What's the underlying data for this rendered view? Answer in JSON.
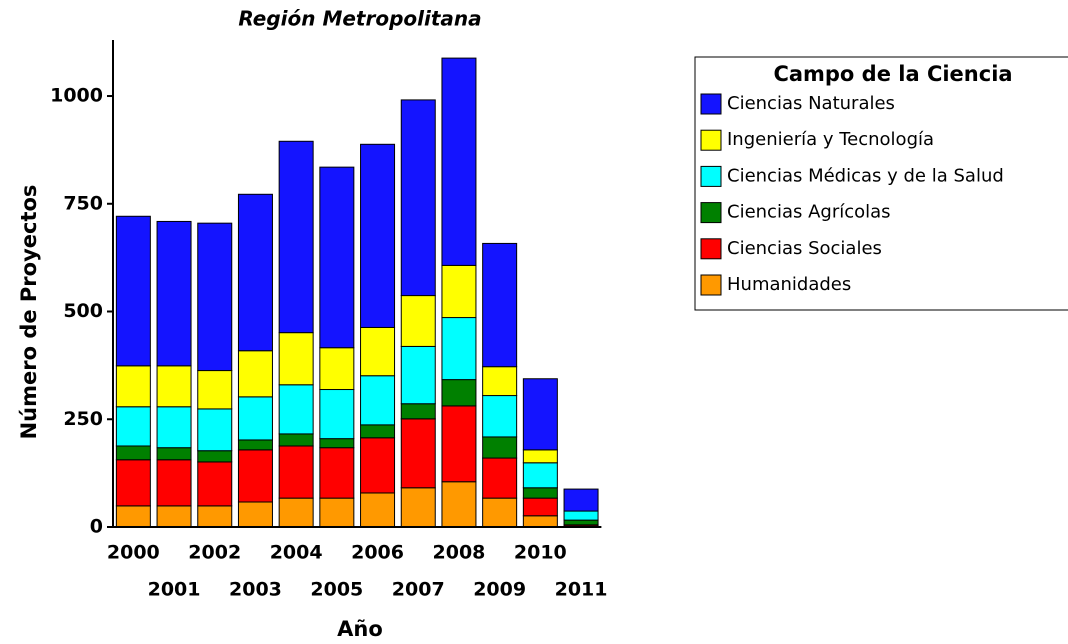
{
  "chart_data": {
    "type": "stacked_bar",
    "title": "Región Metropolitana",
    "x_label": "Año",
    "y_label": "Número de Proyectos",
    "legend_title": "Campo de la Ciencia",
    "categories": [
      "2000",
      "2001",
      "2002",
      "2003",
      "2004",
      "2005",
      "2006",
      "2007",
      "2008",
      "2009",
      "2010",
      "2011"
    ],
    "series": [
      {
        "name": "Humanidades",
        "color": "#ff9900",
        "values": [
          49,
          49,
          49,
          58,
          67,
          67,
          79,
          91,
          105,
          67,
          26,
          2
        ]
      },
      {
        "name": "Ciencias Sociales",
        "color": "#ff0000",
        "values": [
          107,
          107,
          102,
          121,
          121,
          117,
          128,
          160,
          176,
          93,
          41,
          3
        ]
      },
      {
        "name": "Ciencias Agrícolas",
        "color": "#008000",
        "values": [
          32,
          28,
          26,
          23,
          28,
          21,
          30,
          35,
          61,
          49,
          24,
          11
        ]
      },
      {
        "name": "Ciencias Médicas y de la Salud",
        "color": "#00ffff",
        "values": [
          91,
          95,
          97,
          100,
          114,
          114,
          114,
          133,
          144,
          96,
          58,
          21
        ]
      },
      {
        "name": "Ingeniería y Tecnología",
        "color": "#ffff00",
        "values": [
          95,
          95,
          89,
          107,
          121,
          97,
          112,
          118,
          121,
          67,
          30,
          0
        ]
      },
      {
        "name": "Ciencias Naturales",
        "color": "#1414ff",
        "values": [
          347,
          335,
          342,
          363,
          444,
          419,
          425,
          454,
          481,
          286,
          165,
          51
        ]
      }
    ],
    "ylim": [
      0,
      1130
    ],
    "yticks": [
      0,
      250,
      500,
      750,
      1000
    ]
  }
}
